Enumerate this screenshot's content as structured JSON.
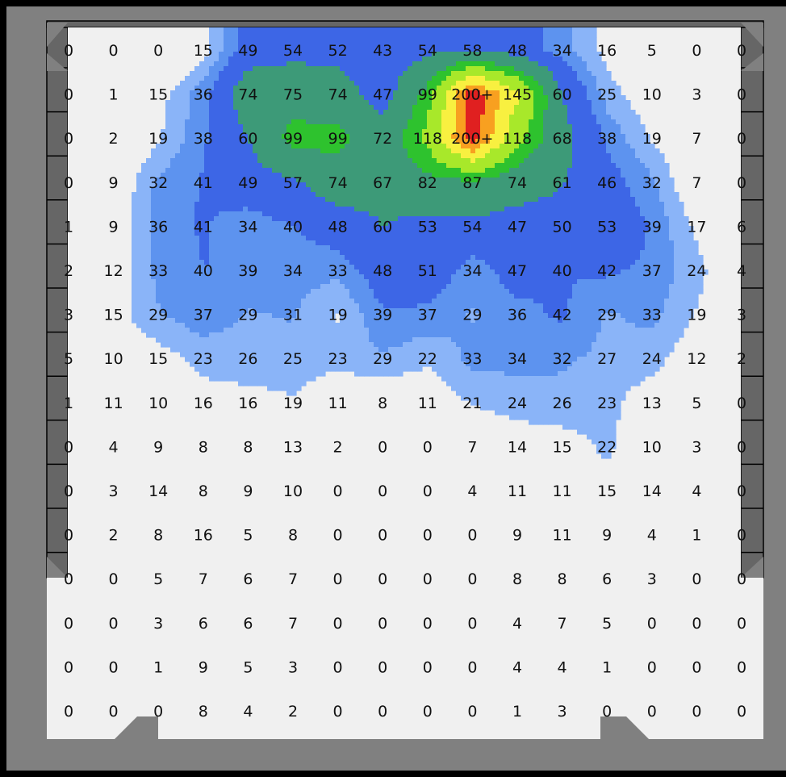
{
  "chart_data": {
    "type": "heatmap",
    "title": "",
    "xlabel": "",
    "ylabel": "",
    "grid": false,
    "legend": "none",
    "cell_labels": [
      [
        "0",
        "0",
        "0",
        "15",
        "49",
        "54",
        "52",
        "43",
        "54",
        "58",
        "48",
        "34",
        "16",
        "5",
        "0",
        "0"
      ],
      [
        "0",
        "1",
        "15",
        "36",
        "74",
        "75",
        "74",
        "47",
        "99",
        "200+",
        "145",
        "60",
        "25",
        "10",
        "3",
        "0"
      ],
      [
        "0",
        "2",
        "19",
        "38",
        "60",
        "99",
        "99",
        "72",
        "118",
        "200+",
        "118",
        "68",
        "38",
        "19",
        "7",
        "0"
      ],
      [
        "0",
        "9",
        "32",
        "41",
        "49",
        "57",
        "74",
        "67",
        "82",
        "87",
        "74",
        "61",
        "46",
        "32",
        "7",
        "0"
      ],
      [
        "1",
        "9",
        "36",
        "41",
        "34",
        "40",
        "48",
        "60",
        "53",
        "54",
        "47",
        "50",
        "53",
        "39",
        "17",
        "6"
      ],
      [
        "2",
        "12",
        "33",
        "40",
        "39",
        "34",
        "33",
        "48",
        "51",
        "34",
        "47",
        "40",
        "42",
        "37",
        "24",
        "4"
      ],
      [
        "3",
        "15",
        "29",
        "37",
        "29",
        "31",
        "19",
        "39",
        "37",
        "29",
        "36",
        "42",
        "29",
        "33",
        "19",
        "3"
      ],
      [
        "5",
        "10",
        "15",
        "23",
        "26",
        "25",
        "23",
        "29",
        "22",
        "33",
        "34",
        "32",
        "27",
        "24",
        "12",
        "2"
      ],
      [
        "1",
        "11",
        "10",
        "16",
        "16",
        "19",
        "11",
        "8",
        "11",
        "21",
        "24",
        "26",
        "23",
        "13",
        "5",
        "0"
      ],
      [
        "0",
        "4",
        "9",
        "8",
        "8",
        "13",
        "2",
        "0",
        "0",
        "7",
        "14",
        "15",
        "22",
        "10",
        "3",
        "0"
      ],
      [
        "0",
        "3",
        "14",
        "8",
        "9",
        "10",
        "0",
        "0",
        "0",
        "4",
        "11",
        "11",
        "15",
        "14",
        "4",
        "0"
      ],
      [
        "0",
        "2",
        "8",
        "16",
        "5",
        "8",
        "0",
        "0",
        "0",
        "0",
        "9",
        "11",
        "9",
        "4",
        "1",
        "0"
      ],
      [
        "0",
        "0",
        "5",
        "7",
        "6",
        "7",
        "0",
        "0",
        "0",
        "0",
        "8",
        "8",
        "6",
        "3",
        "0",
        "0"
      ],
      [
        "0",
        "0",
        "3",
        "6",
        "6",
        "7",
        "0",
        "0",
        "0",
        "0",
        "4",
        "7",
        "5",
        "0",
        "0",
        "0"
      ],
      [
        "0",
        "0",
        "1",
        "9",
        "5",
        "3",
        "0",
        "0",
        "0",
        "0",
        "4",
        "4",
        "1",
        "0",
        "0",
        "0"
      ],
      [
        "0",
        "0",
        "0",
        "8",
        "4",
        "2",
        "0",
        "0",
        "0",
        "0",
        "1",
        "3",
        "0",
        "0",
        "0",
        "0"
      ]
    ],
    "values": [
      [
        0,
        0,
        0,
        15,
        49,
        54,
        52,
        43,
        54,
        58,
        48,
        34,
        16,
        5,
        0,
        0
      ],
      [
        0,
        1,
        15,
        36,
        74,
        75,
        74,
        47,
        99,
        200,
        145,
        60,
        25,
        10,
        3,
        0
      ],
      [
        0,
        2,
        19,
        38,
        60,
        99,
        99,
        72,
        118,
        200,
        118,
        68,
        38,
        19,
        7,
        0
      ],
      [
        0,
        9,
        32,
        41,
        49,
        57,
        74,
        67,
        82,
        87,
        74,
        61,
        46,
        32,
        7,
        0
      ],
      [
        1,
        9,
        36,
        41,
        34,
        40,
        48,
        60,
        53,
        54,
        47,
        50,
        53,
        39,
        17,
        6
      ],
      [
        2,
        12,
        33,
        40,
        39,
        34,
        33,
        48,
        51,
        34,
        47,
        40,
        42,
        37,
        24,
        4
      ],
      [
        3,
        15,
        29,
        37,
        29,
        31,
        19,
        39,
        37,
        29,
        36,
        42,
        29,
        33,
        19,
        3
      ],
      [
        5,
        10,
        15,
        23,
        26,
        25,
        23,
        29,
        22,
        33,
        34,
        32,
        27,
        24,
        12,
        2
      ],
      [
        1,
        11,
        10,
        16,
        16,
        19,
        11,
        8,
        11,
        21,
        24,
        26,
        23,
        13,
        5,
        0
      ],
      [
        0,
        4,
        9,
        8,
        8,
        13,
        2,
        0,
        0,
        7,
        14,
        15,
        22,
        10,
        3,
        0
      ],
      [
        0,
        3,
        14,
        8,
        9,
        10,
        0,
        0,
        0,
        4,
        11,
        11,
        15,
        14,
        4,
        0
      ],
      [
        0,
        2,
        8,
        16,
        5,
        8,
        0,
        0,
        0,
        0,
        9,
        11,
        9,
        4,
        1,
        0
      ],
      [
        0,
        0,
        5,
        7,
        6,
        7,
        0,
        0,
        0,
        0,
        8,
        8,
        6,
        3,
        0,
        0
      ],
      [
        0,
        0,
        3,
        6,
        6,
        7,
        0,
        0,
        0,
        0,
        4,
        7,
        5,
        0,
        0,
        0
      ],
      [
        0,
        0,
        1,
        9,
        5,
        3,
        0,
        0,
        0,
        0,
        4,
        4,
        1,
        0,
        0,
        0
      ],
      [
        0,
        0,
        0,
        8,
        4,
        2,
        0,
        0,
        0,
        0,
        1,
        3,
        0,
        0,
        0,
        0
      ]
    ],
    "color_bands": [
      {
        "min": 0,
        "color": "#f0f0f0"
      },
      {
        "min": 20,
        "color": "#8ab4f8"
      },
      {
        "min": 30,
        "color": "#5d93ef"
      },
      {
        "min": 40,
        "color": "#3d66e6"
      },
      {
        "min": 60,
        "color": "#3d9a78"
      },
      {
        "min": 90,
        "color": "#2ec22e"
      },
      {
        "min": 110,
        "color": "#a8e82a"
      },
      {
        "min": 140,
        "color": "#f8f040"
      },
      {
        "min": 165,
        "color": "#f8a020"
      },
      {
        "min": 185,
        "color": "#e02020"
      }
    ],
    "frame_colors": {
      "wall": "#808080",
      "pillar": "#666666",
      "outer": "#000000"
    }
  }
}
